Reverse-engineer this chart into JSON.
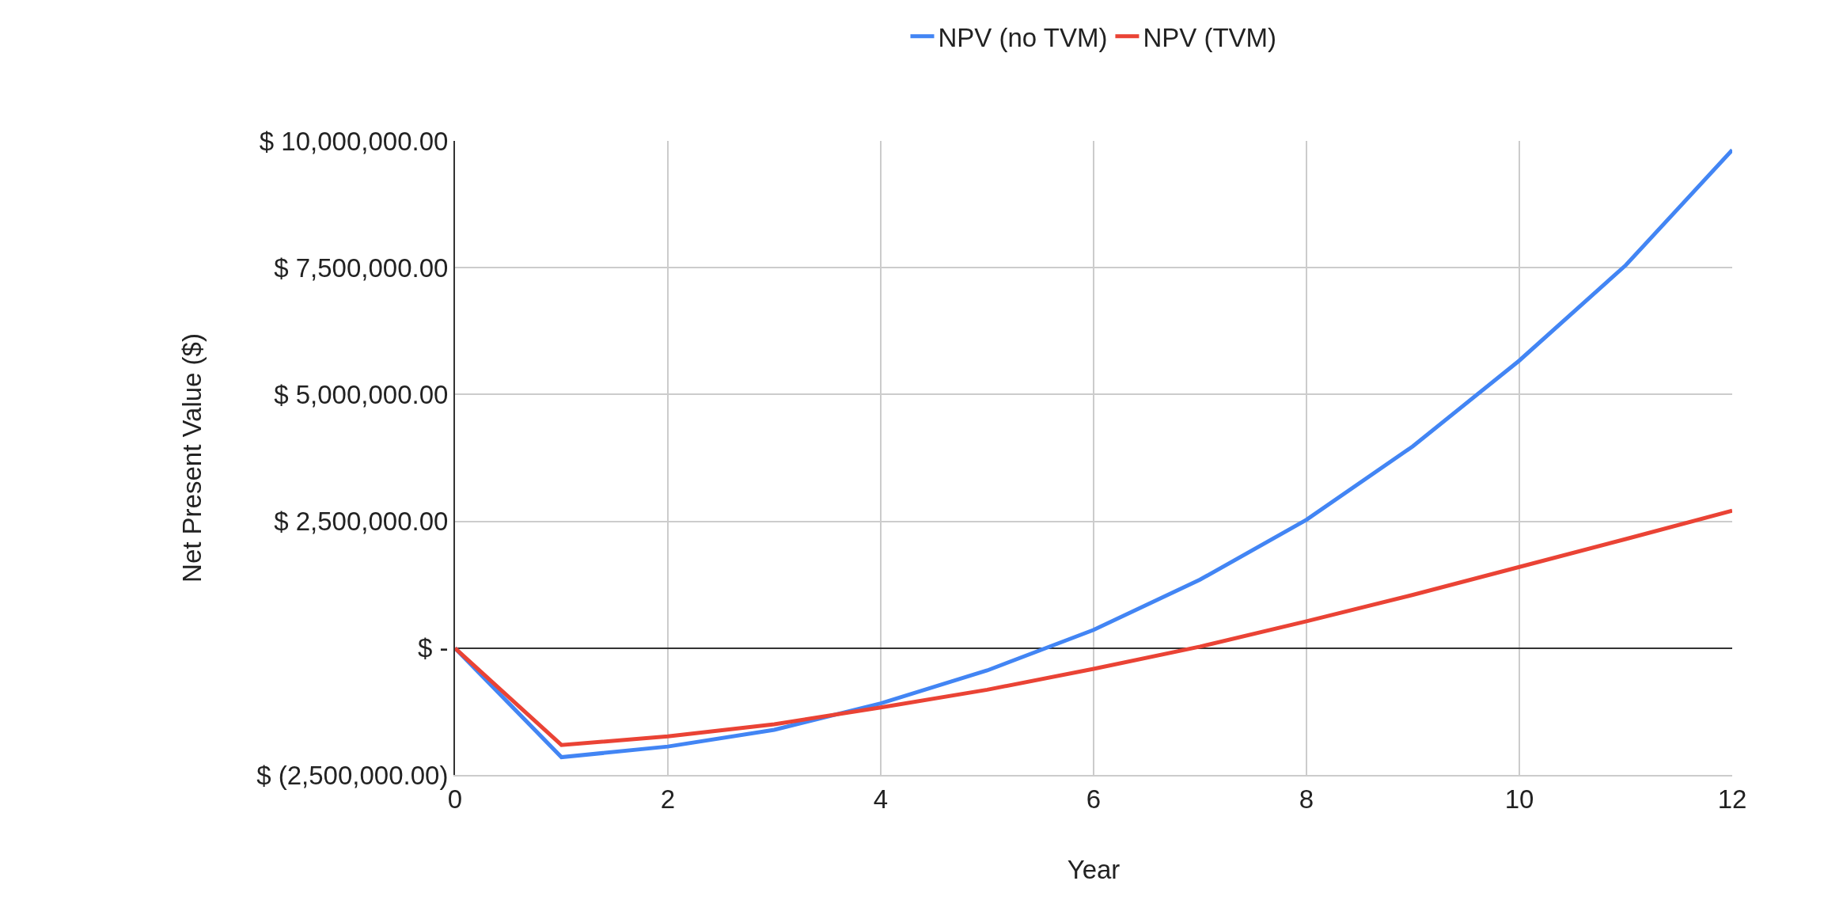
{
  "chart_data": {
    "type": "line",
    "xlabel": "Year",
    "ylabel": "Net Present Value ($)",
    "x": [
      0,
      1,
      2,
      3,
      4,
      5,
      6,
      7,
      8,
      9,
      10,
      11,
      12
    ],
    "series": [
      {
        "name": "NPV (no TVM)",
        "color": "#4285f4",
        "values": [
          0,
          -2150000,
          -1940000,
          -1610000,
          -1090000,
          -440000,
          360000,
          1350000,
          2530000,
          3980000,
          5670000,
          7550000,
          9820000
        ]
      },
      {
        "name": "NPV (TVM)",
        "color": "#ea4335",
        "values": [
          0,
          -1910000,
          -1740000,
          -1500000,
          -1170000,
          -820000,
          -410000,
          30000,
          530000,
          1050000,
          1600000,
          2150000,
          2710000
        ]
      }
    ],
    "xlim": [
      0,
      12
    ],
    "xticks": [
      0,
      2,
      4,
      6,
      8,
      10,
      12
    ],
    "ylim": [
      -2500000,
      10000000
    ],
    "yticks": [
      {
        "value": -2500000,
        "label": "$ (2,500,000.00)"
      },
      {
        "value": 0,
        "label": "$ -"
      },
      {
        "value": 2500000,
        "label": "$ 2,500,000.00"
      },
      {
        "value": 5000000,
        "label": "$ 5,000,000.00"
      },
      {
        "value": 7500000,
        "label": "$ 7,500,000.00"
      },
      {
        "value": 10000000,
        "label": "$ 10,000,000.00"
      }
    ],
    "grid": true,
    "legend": "top",
    "marker": "none",
    "line_style": "solid"
  }
}
